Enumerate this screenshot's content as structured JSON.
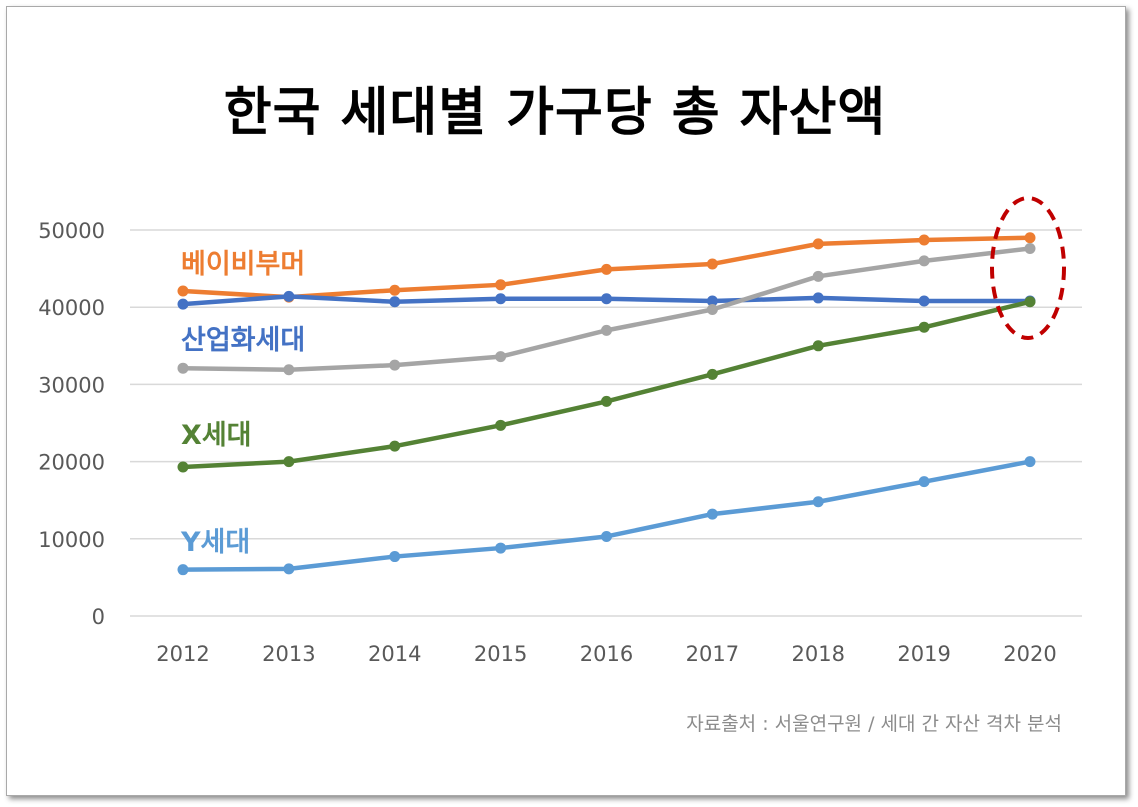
{
  "chart_data": {
    "type": "line",
    "title": "한국 세대별 가구당 총 자산액",
    "categories": [
      "2012",
      "2013",
      "2014",
      "2015",
      "2016",
      "2017",
      "2018",
      "2019",
      "2020"
    ],
    "ylim": [
      0,
      50000
    ],
    "yticks": [
      "0",
      "10000",
      "20000",
      "30000",
      "40000",
      "50000"
    ],
    "grid": true,
    "series": [
      {
        "name": "베이비부머",
        "color": "#ed7d31",
        "values": [
          42100,
          41300,
          42200,
          42900,
          44900,
          45600,
          48200,
          48700,
          49000
        ]
      },
      {
        "name": "산업화세대",
        "color": "#4472c4",
        "values": [
          40400,
          41400,
          40700,
          41100,
          41100,
          40800,
          41200,
          40800,
          40800
        ]
      },
      {
        "name": "",
        "color": "#a5a5a5",
        "values": [
          32100,
          31900,
          32500,
          33600,
          37000,
          39700,
          44000,
          46000,
          47600
        ]
      },
      {
        "name": "X세대",
        "color": "#548235",
        "values": [
          19300,
          20000,
          22000,
          24700,
          27800,
          31300,
          35000,
          37400,
          40700
        ]
      },
      {
        "name": "Y세대",
        "color": "#5b9bd5",
        "values": [
          6000,
          6100,
          7700,
          8800,
          10300,
          13200,
          14800,
          17400,
          20000
        ]
      }
    ],
    "annotation": "dashed red ellipse highlighting 2020 values",
    "source": "자료출처 : 서울연구원 / 세대 간 자산 격차 분석"
  }
}
